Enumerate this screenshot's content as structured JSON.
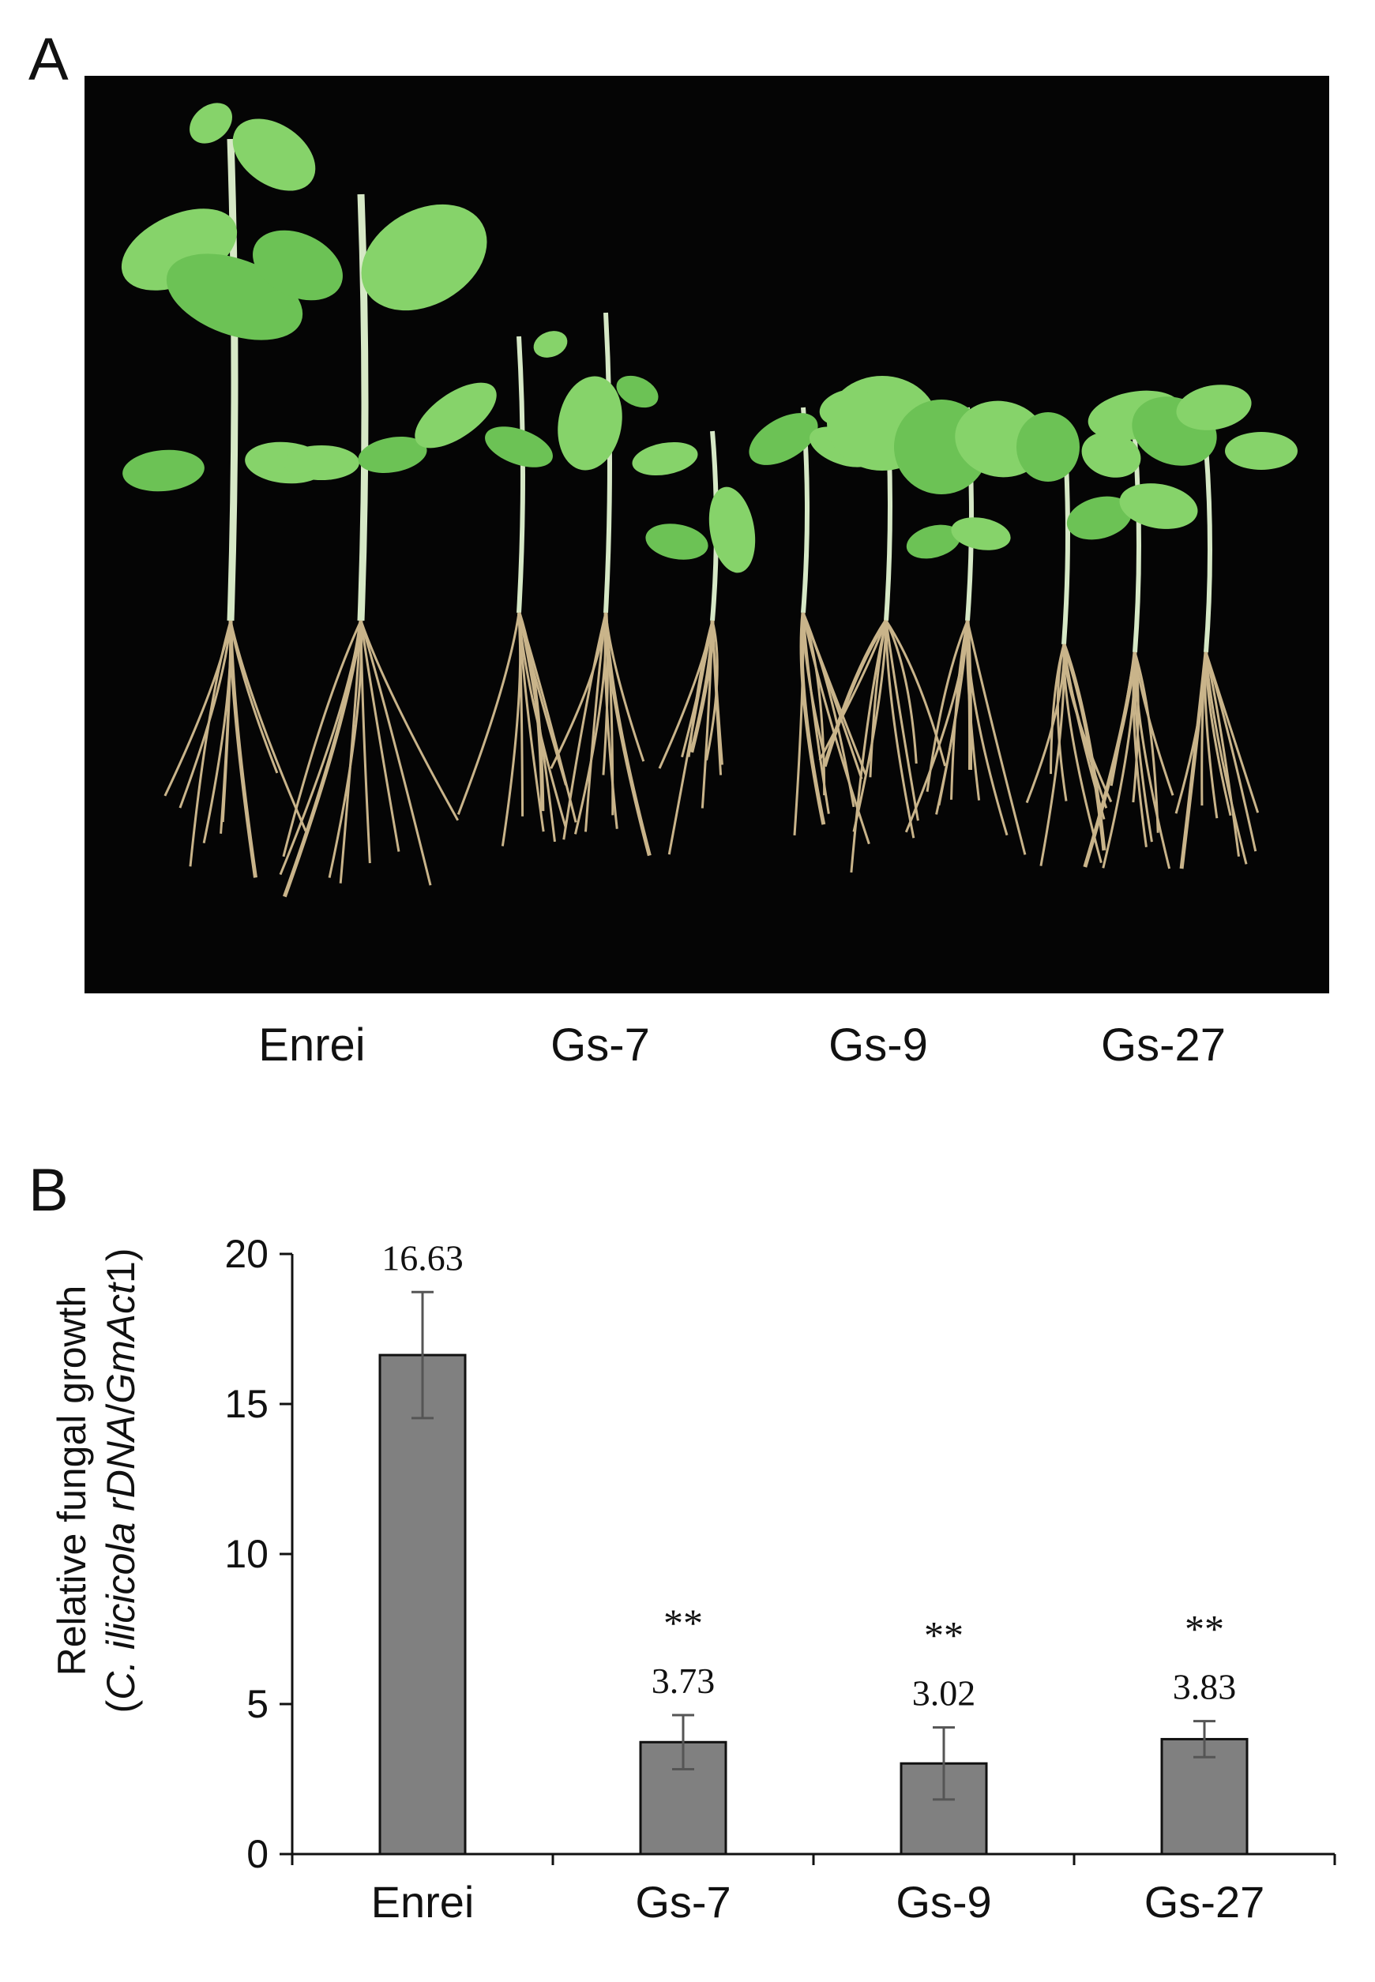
{
  "panel_a": {
    "letter": "A",
    "labels": [
      "Enrei",
      "Gs-7",
      "Gs-9",
      "Gs-27"
    ]
  },
  "panel_b": {
    "letter": "B"
  },
  "chart_data": {
    "type": "bar",
    "categories": [
      "Enrei",
      "Gs-7",
      "Gs-9",
      "Gs-27"
    ],
    "values": [
      16.63,
      3.73,
      3.02,
      3.83
    ],
    "errors": [
      2.1,
      0.9,
      1.2,
      0.6
    ],
    "data_labels": [
      "16.63",
      "3.73",
      "3.02",
      "3.83"
    ],
    "significance": [
      "",
      "**",
      "**",
      "**"
    ],
    "ylabel_line1": "Relative fungal growth",
    "ylabel_line2": "(C. ilicicola rDNA/GmAct1)",
    "ylim": [
      0,
      20
    ],
    "yticks": [
      0,
      5,
      10,
      15,
      20
    ],
    "grid": false,
    "bar_color": "#808080",
    "error_color": "#555555"
  }
}
